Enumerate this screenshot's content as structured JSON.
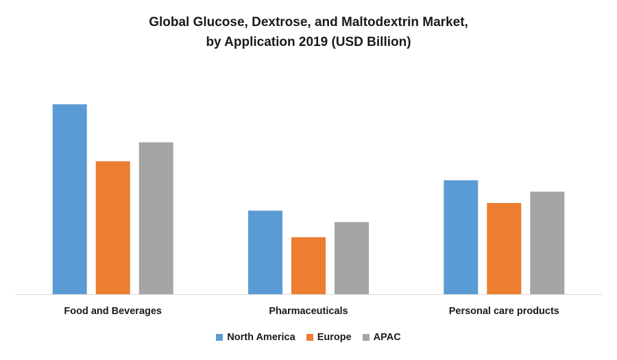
{
  "chart_data": {
    "type": "bar",
    "title": "Global Glucose, Dextrose, and Maltodextrin Market,",
    "subtitle": "by Application 2019 (USD Billion)",
    "categories": [
      "Food and Beverages",
      "Pharmaceuticals",
      "Personal care products"
    ],
    "series": [
      {
        "name": "North America",
        "color": "#5B9BD5",
        "values": [
          10.0,
          4.4,
          6.0
        ]
      },
      {
        "name": "Europe",
        "color": "#ED7D31",
        "values": [
          7.0,
          3.0,
          4.8
        ]
      },
      {
        "name": "APAC",
        "color": "#A5A5A5",
        "values": [
          8.0,
          3.8,
          5.4
        ]
      }
    ],
    "ylim": [
      0,
      10.8
    ],
    "grid": false,
    "legend": "bottom",
    "xlabel": "",
    "ylabel": ""
  }
}
